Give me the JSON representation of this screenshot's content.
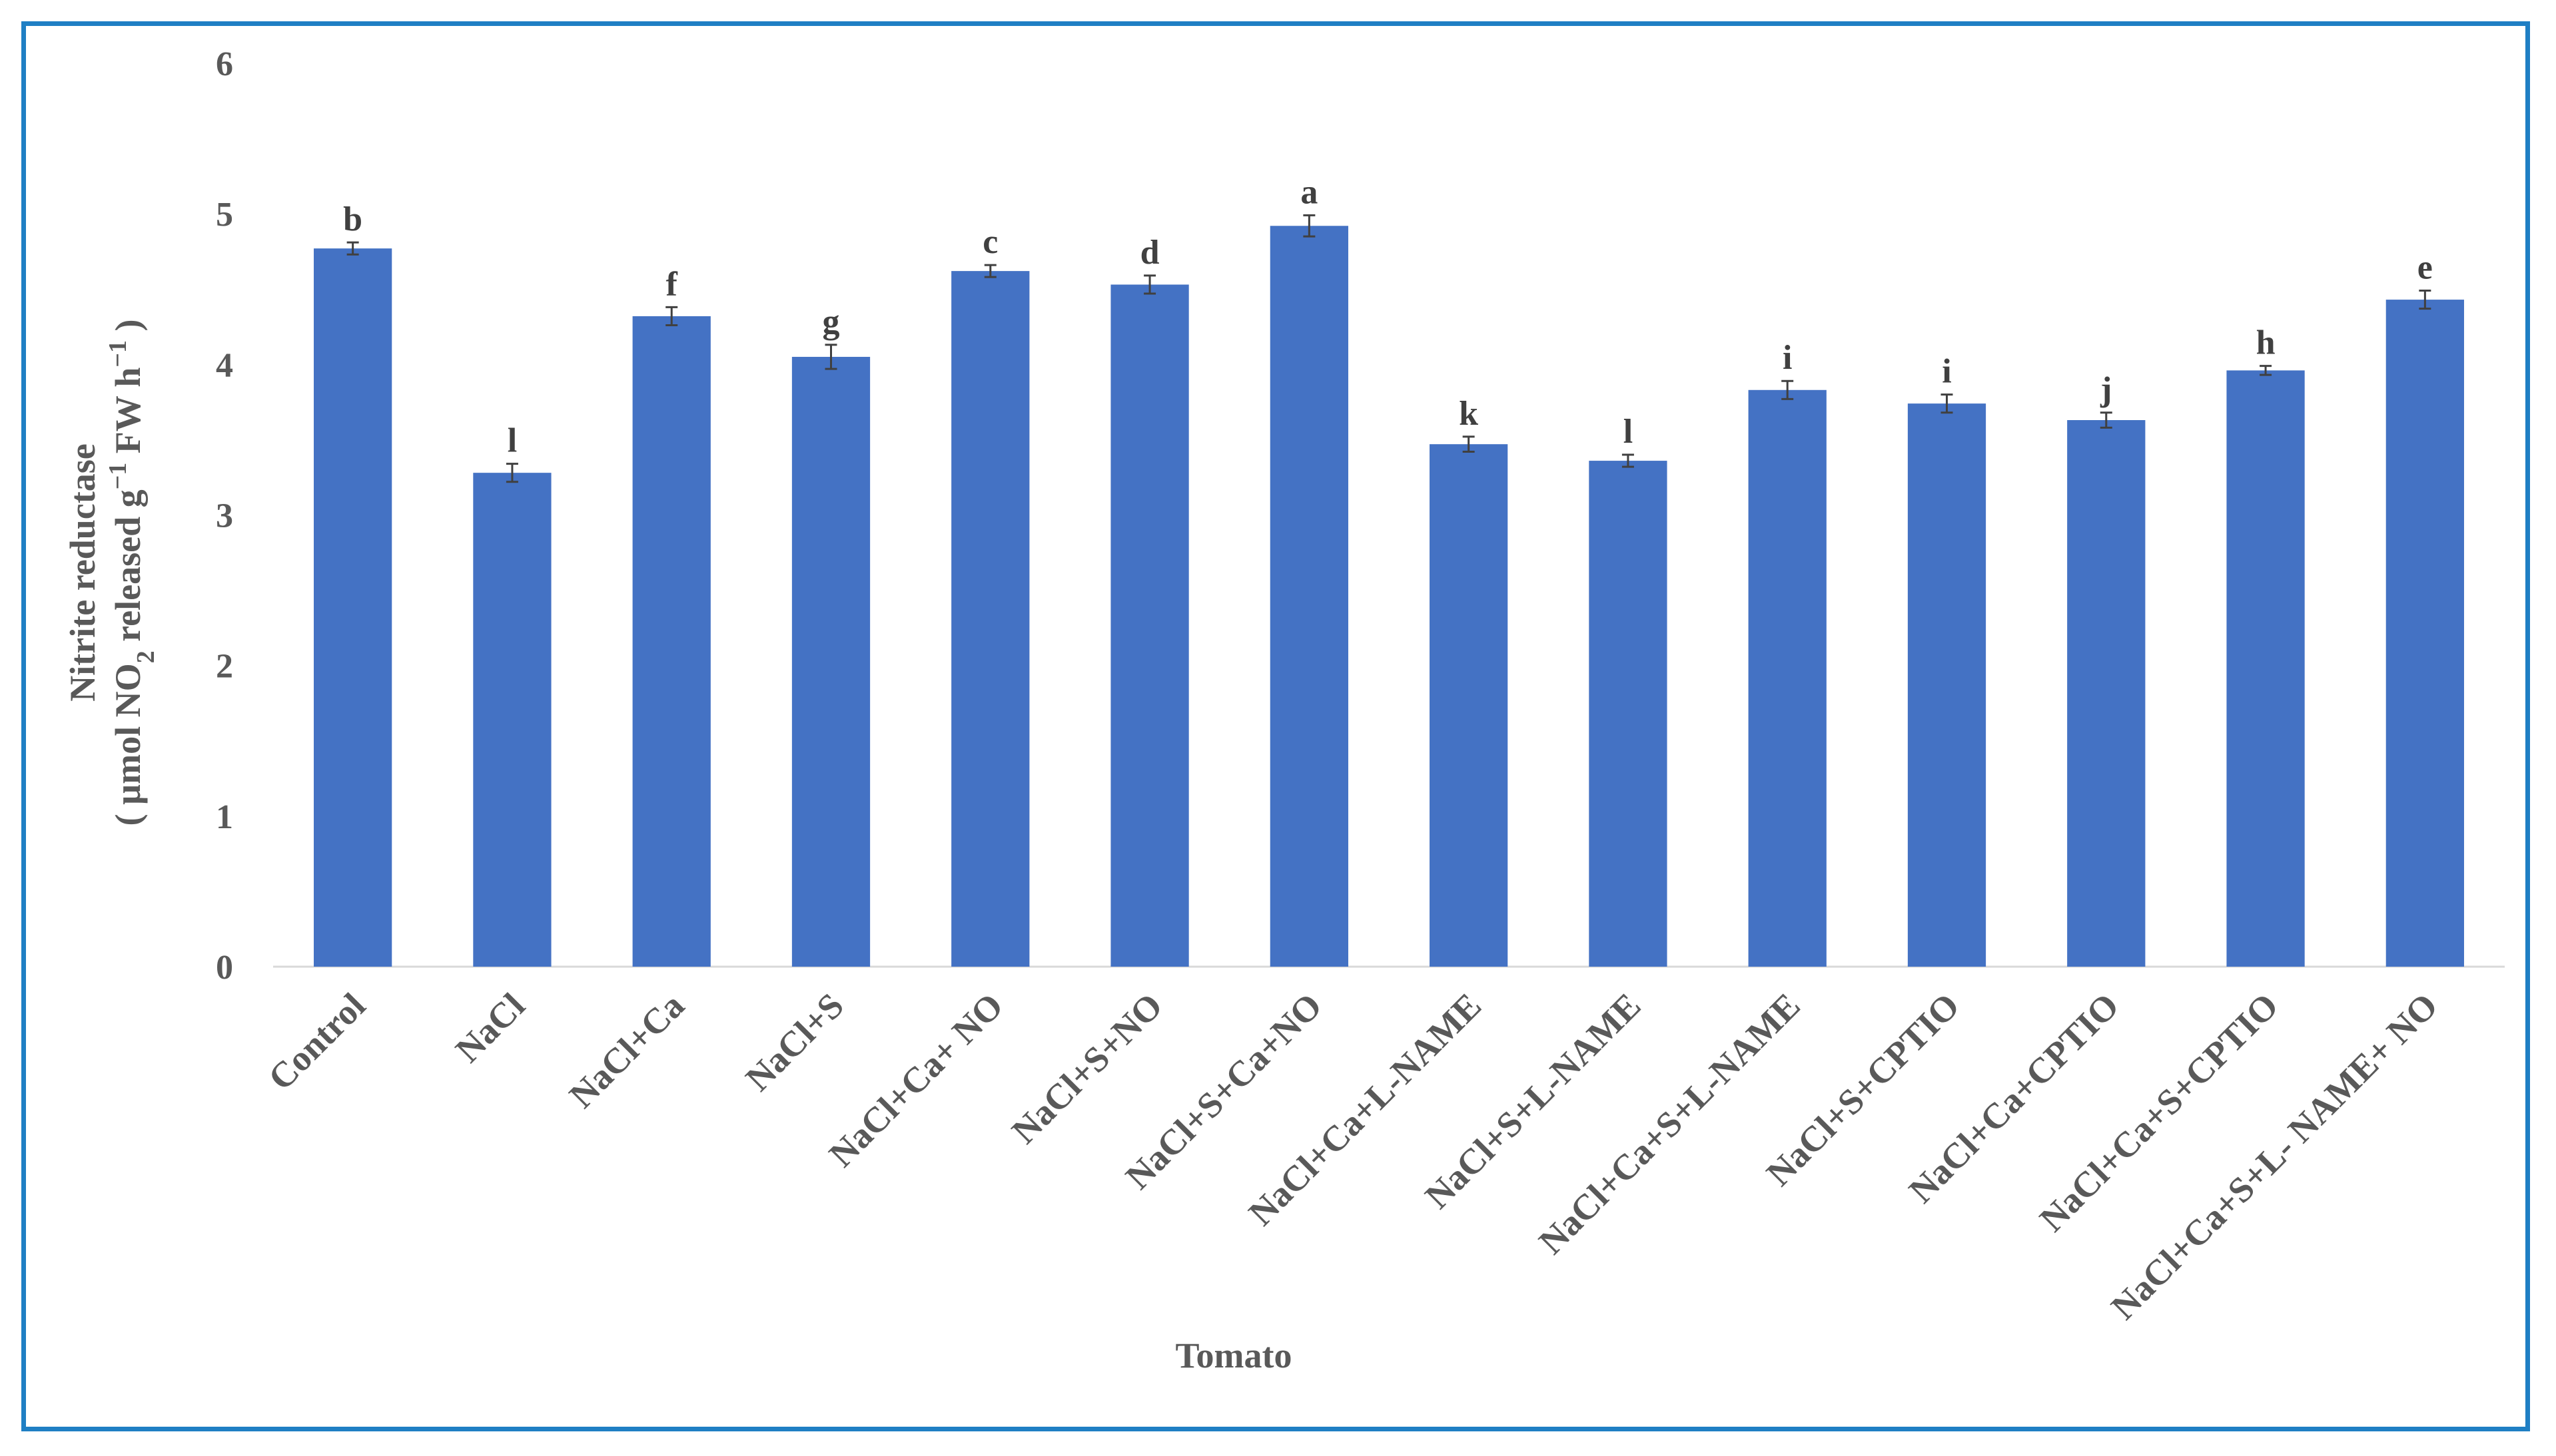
{
  "chart_data": {
    "type": "bar",
    "title": "",
    "xlabel": "Tomato",
    "ylabel": {
      "line1": "Nitrite  reductase",
      "line2_pre": "( µmol NO",
      "line2_sub": "2",
      "line2_mid": " released g",
      "line2_sup1": "−1",
      "line2_mid2": " FW h",
      "line2_sup2": "−1",
      "line2_post": " )"
    },
    "ylim": [
      0,
      6
    ],
    "yticks": [
      "0",
      "1",
      "2",
      "3",
      "4",
      "5",
      "6"
    ],
    "grid": false,
    "legend": "none",
    "bar_color": "#4472c4",
    "categories": [
      "Control",
      "NaCl",
      "NaCl+Ca",
      "NaCl+S",
      "NaCl+Ca+ NO",
      "NaCl+S+NO",
      "NaCl+S+Ca+NO",
      "NaCl+Ca+L-NAME",
      "NaCl+S+L-NAME",
      "NaCl+Ca+S+L-NAME",
      "NaCl+S+CPTIO",
      "NaCl+Ca+CPTIO",
      "NaCl+Ca+S+CPTIO",
      "NaCl+Ca+S+L- NAME+ NO"
    ],
    "values": [
      4.77,
      3.28,
      4.32,
      4.05,
      4.62,
      4.53,
      4.92,
      3.47,
      3.36,
      3.83,
      3.74,
      3.63,
      3.96,
      4.43
    ],
    "errors": [
      0.04,
      0.06,
      0.06,
      0.08,
      0.04,
      0.06,
      0.07,
      0.05,
      0.04,
      0.06,
      0.06,
      0.05,
      0.03,
      0.06
    ],
    "significance": [
      "b",
      "l",
      "f",
      "g",
      "c",
      "d",
      "a",
      "k",
      "l",
      "i",
      "i",
      "j",
      "h",
      "e"
    ]
  }
}
